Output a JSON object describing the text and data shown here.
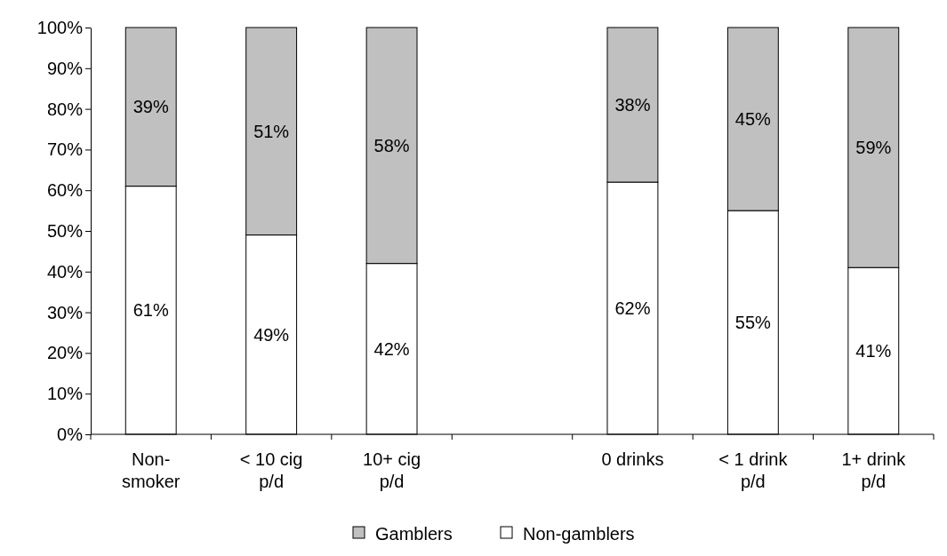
{
  "chart_data": {
    "type": "bar",
    "stacked": true,
    "categories": [
      "Non-\nsmoker",
      "< 10 cig\np/d",
      "10+ cig\np/d",
      null,
      "0 drinks",
      "< 1 drink\np/d",
      "1+ drink\np/d"
    ],
    "series": [
      {
        "name": "Non-gamblers",
        "color": "#ffffff",
        "values": [
          61,
          49,
          42,
          null,
          62,
          55,
          41
        ],
        "value_labels": [
          "61%",
          "49%",
          "42%",
          null,
          "62%",
          "55%",
          "41%"
        ]
      },
      {
        "name": "Gamblers",
        "color": "#c0c0c0",
        "values": [
          39,
          51,
          58,
          null,
          38,
          45,
          59
        ],
        "value_labels": [
          "39%",
          "51%",
          "58%",
          null,
          "38%",
          "45%",
          "59%"
        ]
      }
    ],
    "ylim": [
      0,
      100
    ],
    "yticks": [
      {
        "value": 0,
        "label": "0%"
      },
      {
        "value": 10,
        "label": "10%"
      },
      {
        "value": 20,
        "label": "20%"
      },
      {
        "value": 30,
        "label": "30%"
      },
      {
        "value": 40,
        "label": "40%"
      },
      {
        "value": 50,
        "label": "50%"
      },
      {
        "value": 60,
        "label": "60%"
      },
      {
        "value": 70,
        "label": "70%"
      },
      {
        "value": 80,
        "label": "80%"
      },
      {
        "value": 90,
        "label": "90%"
      },
      {
        "value": 100,
        "label": "100%"
      }
    ],
    "legend": "bottom",
    "grid": false
  }
}
